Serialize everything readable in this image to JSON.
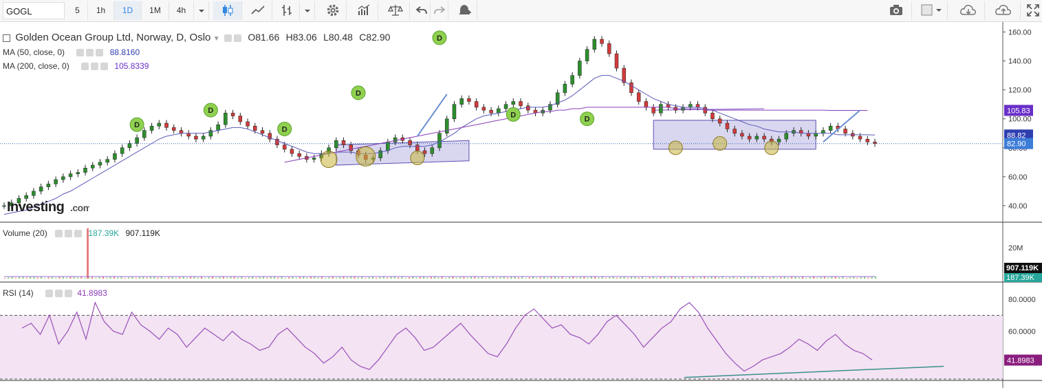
{
  "toolbar": {
    "symbol": "GOGL",
    "intervals": [
      "5",
      "1h",
      "1D",
      "1M",
      "4h"
    ],
    "active_interval": "1D"
  },
  "chart_data": [
    {
      "type": "line",
      "panel": "price",
      "title": "Golden Ocean Group Ltd, Norway, D, Oslo",
      "ohlc": {
        "O": "81.66",
        "H": "83.06",
        "L": "80.48",
        "C": "82.90"
      },
      "ylim": [
        30,
        165
      ],
      "yticks": [
        "160.00",
        "140.00",
        "120.00",
        "100.00",
        "80.00",
        "60.00",
        "40.00"
      ],
      "ytick_values": [
        160,
        140,
        120,
        100,
        80,
        60,
        40
      ],
      "series": [
        {
          "name": "Close",
          "values": [
            40,
            42,
            45,
            47,
            50,
            53,
            55,
            58,
            60,
            62,
            63,
            66,
            68,
            70,
            72,
            76,
            80,
            83,
            87,
            92,
            95,
            97,
            94,
            92,
            90,
            88,
            86,
            88,
            92,
            96,
            104,
            102,
            98,
            95,
            92,
            90,
            86,
            82,
            79,
            76,
            74,
            72,
            73,
            76,
            80,
            85,
            82,
            78,
            75,
            72,
            73,
            78,
            84,
            87,
            85,
            82,
            78,
            76,
            80,
            90,
            100,
            110,
            114,
            112,
            108,
            106,
            104,
            107,
            110,
            112,
            109,
            106,
            104,
            106,
            110,
            118,
            124,
            130,
            140,
            148,
            155,
            152,
            145,
            135,
            125,
            118,
            112,
            108,
            104,
            110,
            108,
            106,
            108,
            110,
            108,
            104,
            100,
            97,
            93,
            90,
            88,
            86,
            88,
            86,
            84,
            86,
            90,
            92,
            90,
            88,
            90,
            92,
            95,
            93,
            90,
            88,
            86,
            84,
            82.9
          ]
        },
        {
          "name": "MA (50, close, 0)",
          "label": "MA (50, close, 0)",
          "value_label": "88.8160",
          "color": "#5a5ab8",
          "values": [
            34,
            35,
            36,
            37,
            39,
            41,
            43,
            45,
            48,
            50,
            53,
            56,
            59,
            62,
            65,
            68,
            71,
            74,
            77,
            80,
            83,
            86,
            88,
            89,
            90,
            90,
            90,
            90,
            91,
            92,
            93,
            94,
            94,
            93,
            91,
            89,
            87,
            85,
            83,
            81,
            79,
            77,
            76,
            76,
            76,
            77,
            77,
            77,
            76,
            76,
            76,
            77,
            78,
            80,
            81,
            81,
            81,
            81,
            82,
            84,
            87,
            90,
            94,
            97,
            100,
            102,
            103,
            104,
            105,
            106,
            107,
            108,
            108,
            108,
            109,
            111,
            113,
            116,
            120,
            124,
            128,
            130,
            130,
            128,
            126,
            123,
            120,
            117,
            114,
            112,
            110,
            109,
            108,
            108,
            108,
            107,
            106,
            104,
            102,
            100,
            98,
            96,
            95,
            93,
            92,
            91,
            91,
            91,
            90,
            90,
            90,
            90,
            90,
            89,
            89,
            89,
            89,
            89,
            88.8
          ]
        },
        {
          "name": "MA (200, close, 0)",
          "label": "MA (200, close, 0)",
          "value_label": "105.8339",
          "color": "#8a3cb8",
          "values": [
            null,
            null,
            null,
            null,
            null,
            null,
            null,
            null,
            null,
            null,
            null,
            null,
            null,
            null,
            null,
            null,
            null,
            null,
            null,
            null,
            null,
            null,
            null,
            null,
            null,
            null,
            null,
            null,
            null,
            null,
            null,
            null,
            null,
            null,
            null,
            null,
            null,
            null,
            70,
            71,
            72,
            73,
            74,
            75,
            76,
            77,
            78,
            79,
            80,
            81,
            82,
            83,
            84,
            85,
            86,
            87,
            88,
            89,
            90,
            91,
            92,
            93,
            94,
            95,
            96,
            97,
            98,
            99,
            100,
            101,
            102,
            103,
            104,
            105,
            105,
            106,
            106,
            107,
            107,
            108,
            108,
            108,
            108,
            108,
            108,
            108,
            108,
            108,
            108,
            108,
            108,
            107,
            107,
            107,
            107,
            106,
            106,
            106,
            106,
            106,
            106,
            106,
            106,
            106,
            106,
            106,
            106,
            106,
            106,
            106,
            106,
            106,
            105.8,
            105.8,
            105.8,
            105.8,
            105.8,
            105.8
          ]
        }
      ],
      "price_labels": [
        {
          "value": 105.83,
          "text": "105.83",
          "color": "#6a2fc9"
        },
        {
          "value": 88.82,
          "text": "88.82",
          "color": "#2f3fb0"
        },
        {
          "value": 82.9,
          "text": "82.90",
          "color": "#3d7dd8"
        }
      ],
      "annotations": {
        "dividend_marker_text": "D",
        "dividend_markers": [
          {
            "x": 18,
            "y": 96
          },
          {
            "x": 28,
            "y": 106
          },
          {
            "x": 38,
            "y": 93
          },
          {
            "x": 48,
            "y": 118
          },
          {
            "x": 59,
            "y": 156
          },
          {
            "x": 69,
            "y": 103
          },
          {
            "x": 79,
            "y": 100
          }
        ]
      }
    },
    {
      "type": "bar",
      "panel": "volume",
      "title": "Volume (20)",
      "value_labels": [
        "187.39K",
        "907.119K"
      ],
      "yticks": [
        "20M"
      ],
      "ylim": [
        0,
        30
      ],
      "spike_index": 8,
      "spike_value": 30
    },
    {
      "type": "line",
      "panel": "rsi",
      "title": "RSI (14)",
      "value_label": "41.8983",
      "ylim": [
        30,
        90
      ],
      "yticks": [
        "80.0000",
        "60.0000"
      ],
      "ytick_values": [
        80,
        60
      ],
      "band": [
        30,
        70
      ],
      "values": [
        62,
        65,
        58,
        70,
        52,
        60,
        72,
        55,
        78,
        66,
        60,
        58,
        72,
        64,
        60,
        55,
        62,
        58,
        50,
        56,
        62,
        58,
        54,
        60,
        55,
        52,
        48,
        50,
        58,
        62,
        56,
        50,
        46,
        40,
        44,
        50,
        42,
        38,
        36,
        42,
        50,
        58,
        62,
        56,
        48,
        50,
        55,
        60,
        65,
        58,
        52,
        46,
        44,
        52,
        62,
        70,
        74,
        68,
        62,
        64,
        58,
        56,
        52,
        58,
        66,
        70,
        64,
        58,
        50,
        56,
        62,
        66,
        74,
        78,
        72,
        62,
        54,
        46,
        40,
        35,
        38,
        42,
        44,
        46,
        50,
        55,
        52,
        48,
        54,
        58,
        52,
        48,
        46,
        42
      ]
    }
  ]
}
